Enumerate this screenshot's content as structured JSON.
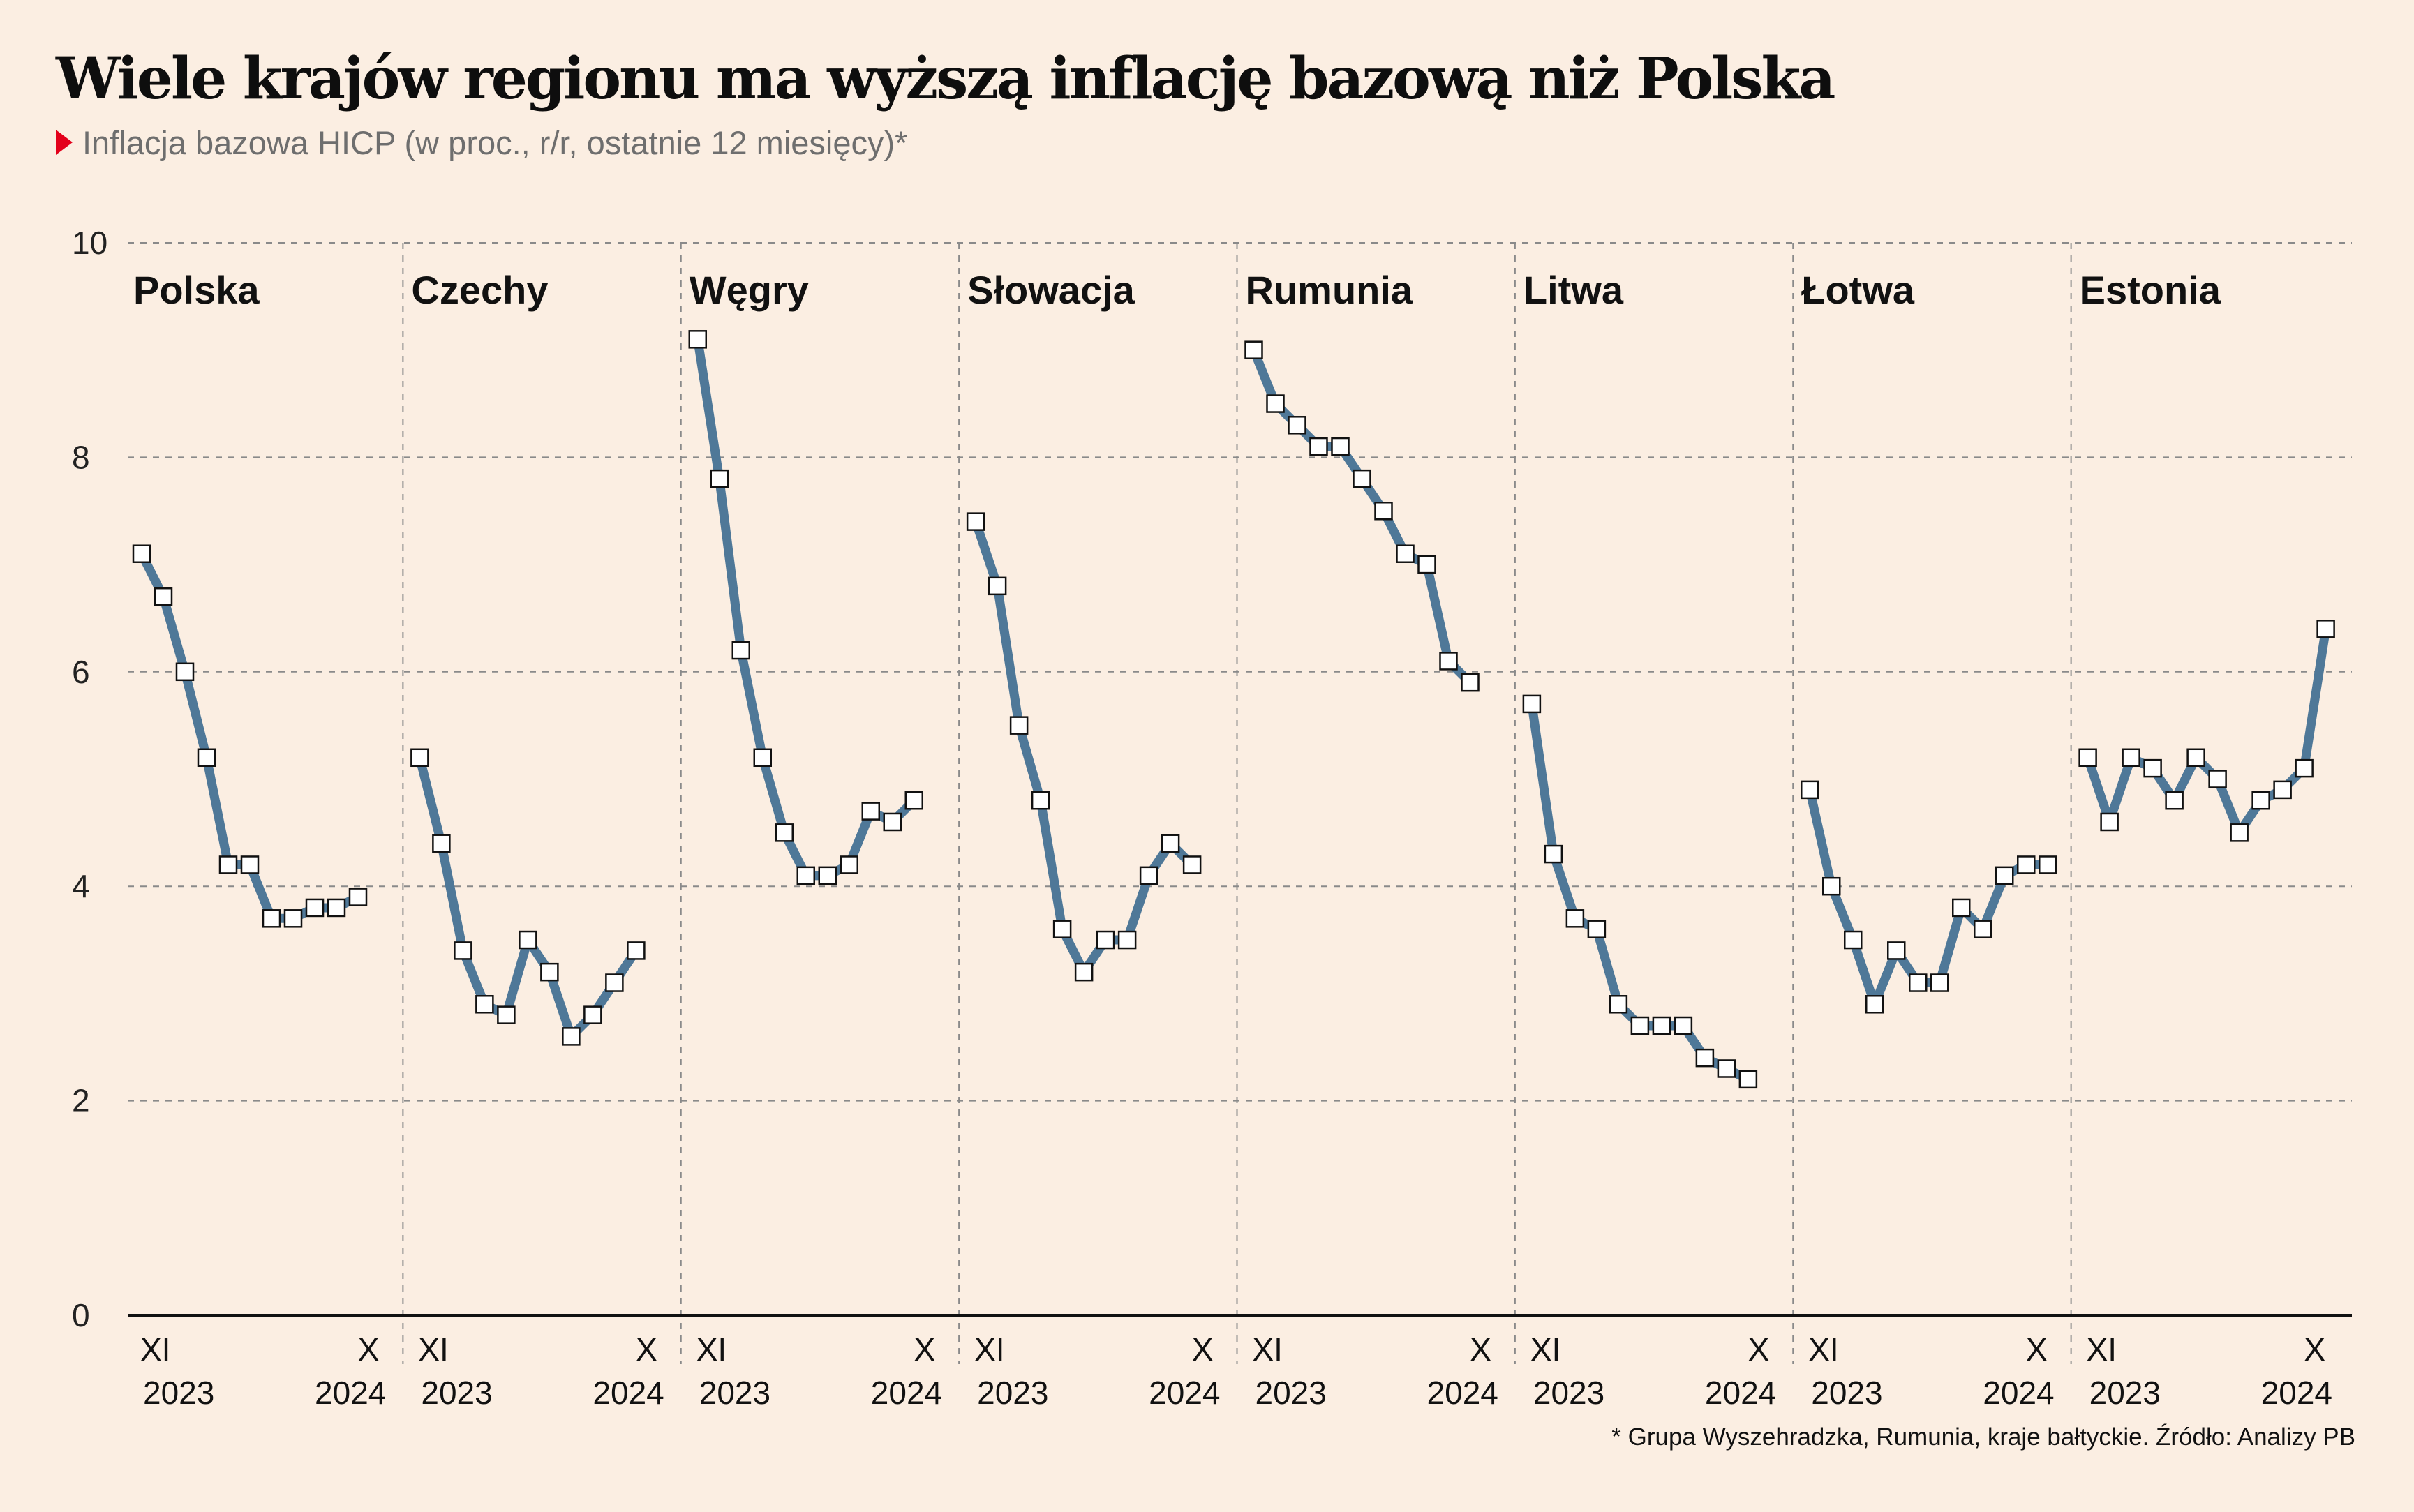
{
  "title": "Wiele krajów regionu ma wyższą inflację bazową niż Polska",
  "subtitle": "Inflacja bazowa HICP (w proc., r/r, ostatnie 12 miesięcy)*",
  "source": "* Grupa Wyszehradzka, Rumunia, kraje bałtyckie. Źródło: Analizy PB",
  "colors": {
    "line": "#4f7898",
    "background": "#fbeee2",
    "marker_fill": "#ffffff",
    "subtitle_marker": "#e3001b"
  },
  "chart_data": {
    "type": "line",
    "ylim": [
      0,
      10
    ],
    "yticks": [
      "0",
      "2",
      "4",
      "6",
      "8",
      "10"
    ],
    "grid": true,
    "x_tick_start": "XI",
    "x_tick_end": "X",
    "x_year_start": "2023",
    "x_year_end": "2024",
    "panels": [
      {
        "name": "Polska",
        "values": [
          7.1,
          6.7,
          6.0,
          5.2,
          4.2,
          4.2,
          3.7,
          3.7,
          3.8,
          3.8,
          3.9
        ]
      },
      {
        "name": "Czechy",
        "values": [
          5.2,
          4.4,
          3.4,
          2.9,
          2.8,
          3.5,
          3.2,
          2.6,
          2.8,
          3.1,
          3.4
        ]
      },
      {
        "name": "Węgry",
        "values": [
          9.1,
          7.8,
          6.2,
          5.2,
          4.5,
          4.1,
          4.1,
          4.2,
          4.7,
          4.6,
          4.8
        ]
      },
      {
        "name": "Słowacja",
        "values": [
          7.4,
          6.8,
          5.5,
          4.8,
          3.6,
          3.2,
          3.5,
          3.5,
          4.1,
          4.4,
          4.2
        ]
      },
      {
        "name": "Rumunia",
        "values": [
          9.0,
          8.5,
          8.3,
          8.1,
          8.1,
          7.8,
          7.5,
          7.1,
          7.0,
          6.1,
          5.9
        ]
      },
      {
        "name": "Litwa",
        "values": [
          5.7,
          4.3,
          3.7,
          3.6,
          2.9,
          2.7,
          2.7,
          2.7,
          2.4,
          2.3,
          2.2
        ]
      },
      {
        "name": "Łotwa",
        "values": [
          4.9,
          4.0,
          3.5,
          2.9,
          3.4,
          3.1,
          3.1,
          3.8,
          3.6,
          4.1,
          4.2,
          4.2
        ]
      },
      {
        "name": "Estonia",
        "values": [
          5.2,
          4.6,
          5.2,
          5.1,
          4.8,
          5.2,
          5.0,
          4.5,
          4.8,
          4.9,
          5.1,
          6.4
        ]
      }
    ]
  }
}
